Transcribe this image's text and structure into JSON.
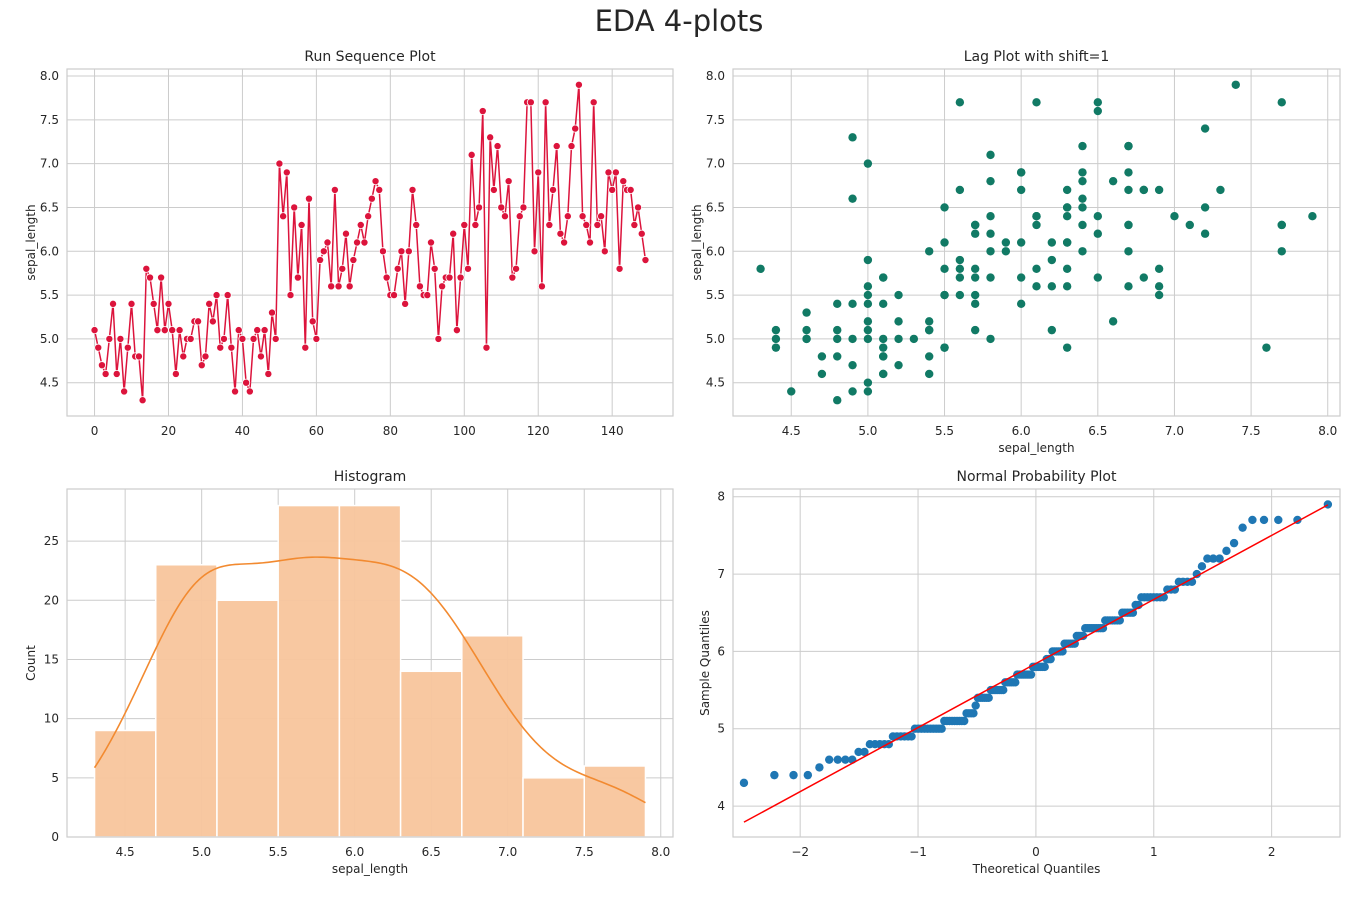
{
  "title": "EDA 4-plots",
  "chart_data": [
    {
      "type": "line",
      "title": "Run Sequence Plot",
      "xlabel": "",
      "ylabel": "sepal_length",
      "xlim": [
        -7.45,
        156.45
      ],
      "ylim": [
        4.12,
        8.08
      ],
      "xticks": [
        0,
        20,
        40,
        60,
        80,
        100,
        120,
        140
      ],
      "yticks": [
        4.5,
        5.0,
        5.5,
        6.0,
        6.5,
        7.0,
        7.5,
        8.0
      ],
      "grid": true,
      "color": "#dc143c",
      "marker": "o",
      "values": [
        5.1,
        4.9,
        4.7,
        4.6,
        5.0,
        5.4,
        4.6,
        5.0,
        4.4,
        4.9,
        5.4,
        4.8,
        4.8,
        4.3,
        5.8,
        5.7,
        5.4,
        5.1,
        5.7,
        5.1,
        5.4,
        5.1,
        4.6,
        5.1,
        4.8,
        5.0,
        5.0,
        5.2,
        5.2,
        4.7,
        4.8,
        5.4,
        5.2,
        5.5,
        4.9,
        5.0,
        5.5,
        4.9,
        4.4,
        5.1,
        5.0,
        4.5,
        4.4,
        5.0,
        5.1,
        4.8,
        5.1,
        4.6,
        5.3,
        5.0,
        7.0,
        6.4,
        6.9,
        5.5,
        6.5,
        5.7,
        6.3,
        4.9,
        6.6,
        5.2,
        5.0,
        5.9,
        6.0,
        6.1,
        5.6,
        6.7,
        5.6,
        5.8,
        6.2,
        5.6,
        5.9,
        6.1,
        6.3,
        6.1,
        6.4,
        6.6,
        6.8,
        6.7,
        6.0,
        5.7,
        5.5,
        5.5,
        5.8,
        6.0,
        5.4,
        6.0,
        6.7,
        6.3,
        5.6,
        5.5,
        5.5,
        6.1,
        5.8,
        5.0,
        5.6,
        5.7,
        5.7,
        6.2,
        5.1,
        5.7,
        6.3,
        5.8,
        7.1,
        6.3,
        6.5,
        7.6,
        4.9,
        7.3,
        6.7,
        7.2,
        6.5,
        6.4,
        6.8,
        5.7,
        5.8,
        6.4,
        6.5,
        7.7,
        7.7,
        6.0,
        6.9,
        5.6,
        7.7,
        6.3,
        6.7,
        7.2,
        6.2,
        6.1,
        6.4,
        7.2,
        7.4,
        7.9,
        6.4,
        6.3,
        6.1,
        7.7,
        6.3,
        6.4,
        6.0,
        6.9,
        6.7,
        6.9,
        5.8,
        6.8,
        6.7,
        6.7,
        6.3,
        6.5,
        6.2,
        5.9
      ]
    },
    {
      "type": "scatter",
      "title": "Lag Plot with shift=1",
      "xlabel": "sepal_length",
      "ylabel": "sepal_length",
      "shift": 1,
      "xlim": [
        4.12,
        8.08
      ],
      "ylim": [
        4.12,
        8.08
      ],
      "xticks": [
        4.5,
        5.0,
        5.5,
        6.0,
        6.5,
        7.0,
        7.5,
        8.0
      ],
      "yticks": [
        4.5,
        5.0,
        5.5,
        6.0,
        6.5,
        7.0,
        7.5,
        8.0
      ],
      "grid": true,
      "color": "#117a65"
    },
    {
      "type": "bar",
      "title": "Histogram",
      "xlabel": "sepal_length",
      "ylabel": "Count",
      "bin_edges": [
        4.3,
        4.7,
        5.1,
        5.5,
        5.9,
        6.3,
        6.7,
        7.1,
        7.5,
        7.9
      ],
      "counts": [
        9,
        23,
        20,
        28,
        28,
        14,
        17,
        5,
        6
      ],
      "kde": true,
      "xlim": [
        4.12,
        8.08
      ],
      "ylim": [
        0,
        29.4
      ],
      "xticks": [
        4.5,
        5.0,
        5.5,
        6.0,
        6.5,
        7.0,
        7.5,
        8.0
      ],
      "yticks": [
        0,
        5,
        10,
        15,
        20,
        25
      ],
      "grid": true,
      "bar_color": "#f8c59c",
      "kde_color": "#f28a30"
    },
    {
      "type": "scatter",
      "title": "Normal Probability Plot",
      "xlabel": "Theoretical Quantiles",
      "ylabel": "Sample Quantiles",
      "reference_line": "standardized",
      "xlim": [
        -2.57,
        2.58
      ],
      "ylim": [
        3.6,
        8.1
      ],
      "xticks": [
        -2,
        -1,
        0,
        1,
        2
      ],
      "yticks": [
        4,
        5,
        6,
        7,
        8
      ],
      "grid": true,
      "color": "#1f77b4",
      "line_color": "#ff0000"
    }
  ]
}
